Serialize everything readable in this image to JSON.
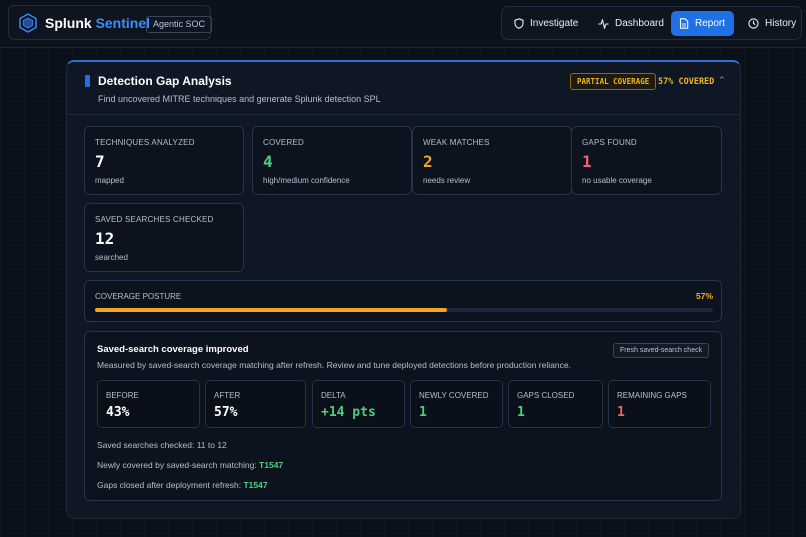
{
  "brand": {
    "name_part1": "Splunk",
    "name_part2": "Sentinel",
    "tag": "Agentic SOC",
    "logo_icon": "hexagon-logo-icon"
  },
  "nav": {
    "items": [
      {
        "label": "Investigate",
        "icon": "shield-icon",
        "active": false
      },
      {
        "label": "Dashboard",
        "icon": "activity-icon",
        "active": false
      },
      {
        "label": "Report",
        "icon": "document-icon",
        "active": true
      },
      {
        "label": "History",
        "icon": "clock-icon",
        "active": false
      }
    ]
  },
  "panel": {
    "title": "Detection Gap Analysis",
    "subtitle": "Find uncovered MITRE techniques and generate Splunk detection SPL",
    "badge": "PARTIAL COVERAGE",
    "coverage_label": "57% COVERED",
    "collapse_icon": "chevron-up-icon"
  },
  "stats": [
    {
      "label": "TECHNIQUES ANALYZED",
      "value": "7",
      "sub": "mapped",
      "color": "#ffffff"
    },
    {
      "label": "COVERED",
      "value": "4",
      "sub": "high/medium confidence",
      "color": "#4cd07d"
    },
    {
      "label": "WEAK MATCHES",
      "value": "2",
      "sub": "needs review",
      "color": "#f0a51a"
    },
    {
      "label": "GAPS FOUND",
      "value": "1",
      "sub": "no usable coverage",
      "color": "#f0616d"
    },
    {
      "label": "SAVED SEARCHES CHECKED",
      "value": "12",
      "sub": "searched",
      "color": "#ffffff"
    }
  ],
  "posture": {
    "label": "COVERAGE POSTURE",
    "value_text": "57%",
    "percent": 57
  },
  "improvement": {
    "title": "Saved-search coverage improved",
    "subtitle": "Measured by saved-search coverage matching after refresh. Review and tune deployed detections before production reliance.",
    "button": "Fresh saved-search check",
    "metrics": [
      {
        "label": "BEFORE",
        "value": "43%",
        "color": "#ffffff"
      },
      {
        "label": "AFTER",
        "value": "57%",
        "color": "#ffffff"
      },
      {
        "label": "DELTA",
        "value": "+14 pts",
        "color": "#4cd07d"
      },
      {
        "label": "NEWLY COVERED",
        "value": "1",
        "color": "#4cd07d"
      },
      {
        "label": "GAPS CLOSED",
        "value": "1",
        "color": "#4cd07d"
      },
      {
        "label": "REMAINING GAPS",
        "value": "1",
        "color": "#f0616d"
      }
    ],
    "lines": [
      {
        "text": "Saved searches checked: 11 to 12",
        "technique": ""
      },
      {
        "text": "Newly covered by saved-search matching: ",
        "technique": "T1547"
      },
      {
        "text": "Gaps closed after deployment refresh: ",
        "technique": "T1547"
      }
    ]
  }
}
